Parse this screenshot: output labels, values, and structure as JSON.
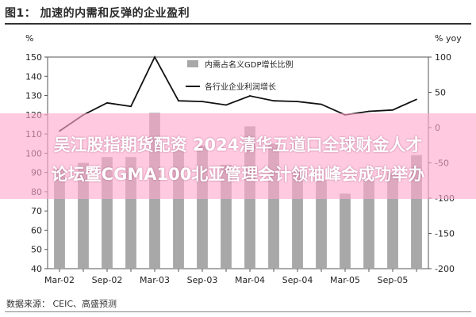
{
  "figure": {
    "title": "图1： 加速的内需和反弹的企业盈利",
    "left_unit": "%",
    "right_unit": "% yoy",
    "source": "数据来源： CEIC、高盛预测"
  },
  "overlay": {
    "line1": "吴江股指期货配资 2024清华五道口全球财金人才",
    "line2": "论坛暨CGMA100北亚管理会计领袖峰会成功举办"
  },
  "colors": {
    "bar": "#a8a8a8",
    "line": "#111111",
    "grid": "#dddddd",
    "overlay": "#ffaacd"
  },
  "chart_data": {
    "type": "bar",
    "x_tick_labels": [
      "Mar-02",
      "Sep-02",
      "Mar-03",
      "Sep-03",
      "Mar-04",
      "Sep-04",
      "Mar-05",
      "Sep-05"
    ],
    "x": [
      "Mar-02",
      "Jun-02",
      "Sep-02",
      "Dec-02",
      "Mar-03",
      "Jun-03",
      "Sep-03",
      "Dec-03",
      "Mar-04",
      "Jun-04",
      "Sep-04",
      "Dec-04",
      "Mar-05",
      "Jun-05",
      "Sep-05",
      "Dec-05"
    ],
    "left_axis": {
      "ylim": [
        40,
        150
      ],
      "ticks": [
        40,
        50,
        60,
        70,
        80,
        90,
        100,
        110,
        120,
        130,
        140,
        150
      ]
    },
    "right_axis": {
      "ylim": [
        -200,
        100
      ],
      "ticks": [
        -200,
        -150,
        -100,
        -50,
        0,
        50,
        100
      ]
    },
    "series": [
      {
        "name": "内需占名义GDP增长比例",
        "type": "bar",
        "axis": "left",
        "values": [
          92,
          95,
          98,
          98,
          121,
          102,
          104,
          94,
          114,
          105,
          91,
          86,
          79,
          86,
          90,
          99
        ]
      },
      {
        "name": "各行业企业利润增长",
        "type": "line",
        "axis": "right",
        "values": [
          -5,
          18,
          35,
          30,
          100,
          38,
          37,
          32,
          45,
          38,
          37,
          33,
          18,
          23,
          25,
          40
        ]
      }
    ],
    "legend_position": "top-center",
    "grid": false
  }
}
